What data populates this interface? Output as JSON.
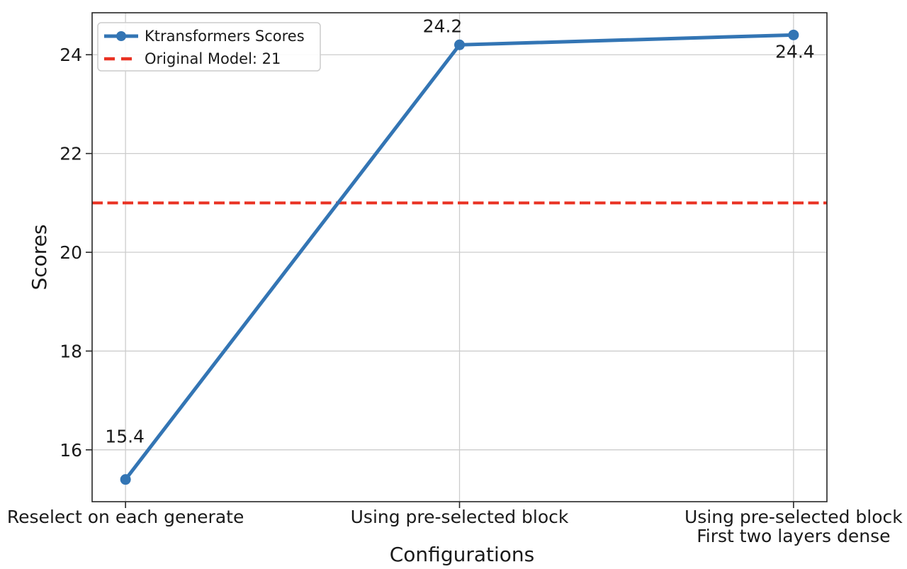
{
  "chart_data": {
    "type": "line",
    "title": "",
    "xlabel": "Configurations",
    "ylabel": "Scores",
    "categories": [
      "Reselect on each generate",
      "Using pre-selected block",
      "Using pre-selected block\nFirst two layers dense"
    ],
    "series": [
      {
        "name": "Ktransformers Scores",
        "values": [
          15.4,
          24.2,
          24.4
        ],
        "color": "#3375b4",
        "marker": "circle",
        "style": "solid"
      }
    ],
    "reference_line": {
      "label": "Original Model: 21",
      "value": 21,
      "color": "#e93122",
      "style": "dashed"
    },
    "data_labels": [
      "15.4",
      "24.2",
      "24.4"
    ],
    "yticks": [
      16,
      18,
      20,
      22,
      24
    ],
    "ylim": [
      14.95,
      24.85
    ],
    "xlim": [
      -0.1,
      2.1
    ],
    "grid": true,
    "legend_position": "upper left",
    "colors": {
      "grid": "#cccccc",
      "spine": "#262626",
      "legend_border": "#cccccc",
      "background": "#ffffff"
    }
  }
}
